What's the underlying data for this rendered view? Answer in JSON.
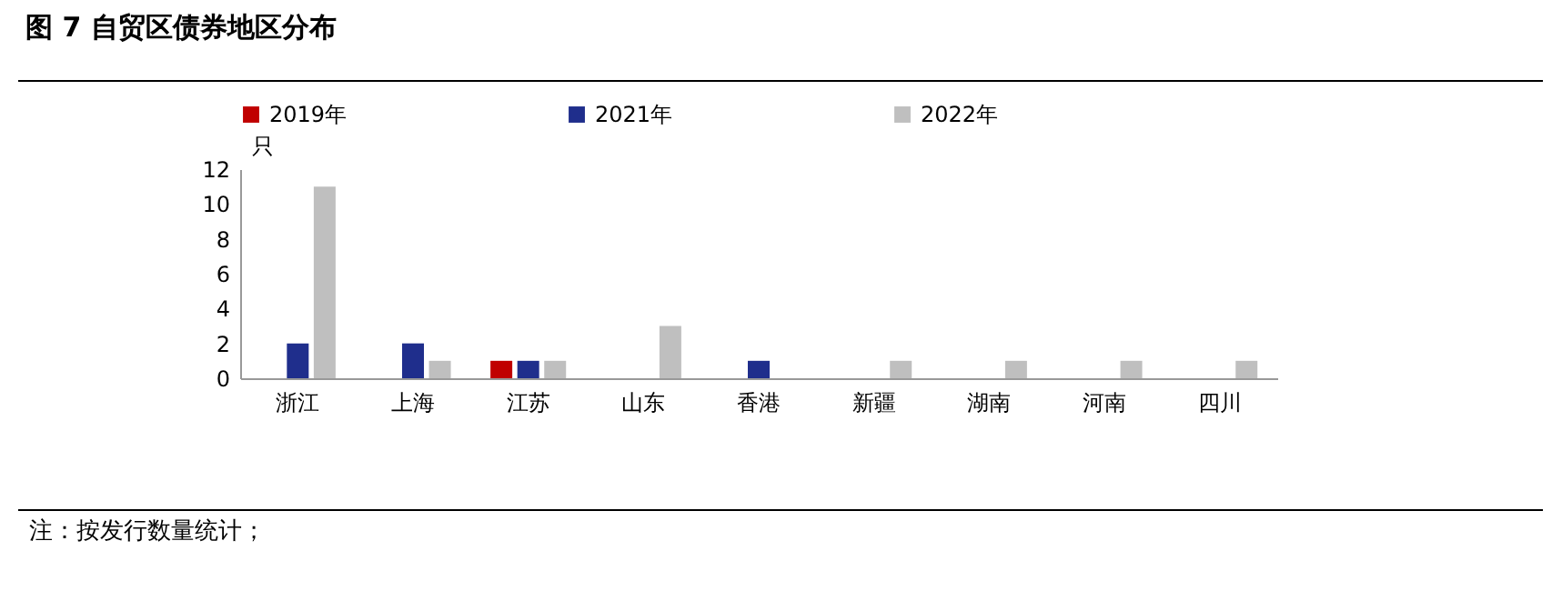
{
  "chart_data": {
    "type": "bar",
    "title": "图 7  自贸区债券地区分布",
    "ylabel": "只",
    "categories": [
      "浙江",
      "上海",
      "江苏",
      "山东",
      "香港",
      "新疆",
      "湖南",
      "河南",
      "四川"
    ],
    "series": [
      {
        "name": "2019年",
        "color": "#c00000",
        "values": [
          null,
          null,
          1,
          null,
          null,
          null,
          null,
          null,
          null
        ]
      },
      {
        "name": "2021年",
        "color": "#1f2e8c",
        "values": [
          2,
          2,
          1,
          null,
          1,
          null,
          null,
          null,
          null
        ]
      },
      {
        "name": "2022年",
        "color": "#bfbfbf",
        "values": [
          11,
          1,
          1,
          3,
          null,
          1,
          1,
          1,
          1
        ]
      }
    ],
    "ylim": [
      0,
      12
    ],
    "yticks": [
      0,
      2,
      4,
      6,
      8,
      10,
      12
    ],
    "grid": false,
    "legend": "top",
    "annotations": [
      "注：按发行数量统计；"
    ]
  }
}
